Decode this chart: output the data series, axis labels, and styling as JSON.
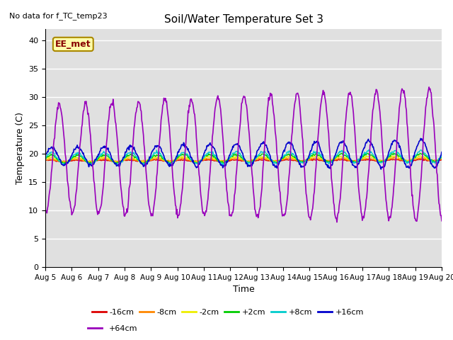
{
  "title": "Soil/Water Temperature Set 3",
  "xlabel": "Time",
  "ylabel": "Temperature (C)",
  "no_data_label": "No data for f_TC_temp23",
  "annotation": "EE_met",
  "ylim": [
    0,
    42
  ],
  "yticks": [
    0,
    5,
    10,
    15,
    20,
    25,
    30,
    35,
    40
  ],
  "bg_color": "#e0e0e0",
  "n_days": 15,
  "colors": {
    "-16cm": "#dd0000",
    "-8cm": "#ff8800",
    "-2cm": "#eeee00",
    "+2cm": "#00cc00",
    "+8cm": "#00cccc",
    "+16cm": "#0000cc",
    "+64cm": "#9900bb"
  },
  "xtick_labels": [
    "Aug 5",
    "Aug 6",
    "Aug 7",
    "Aug 8",
    "Aug 9",
    "Aug 10",
    "Aug 11",
    "Aug 12",
    "Aug 13",
    "Aug 14",
    "Aug 15",
    "Aug 16",
    "Aug 17",
    "Aug 18",
    "Aug 19",
    "Aug 20"
  ],
  "legend_order": [
    "-16cm",
    "-8cm",
    "-2cm",
    "+2cm",
    "+8cm",
    "+16cm",
    "+64cm"
  ]
}
